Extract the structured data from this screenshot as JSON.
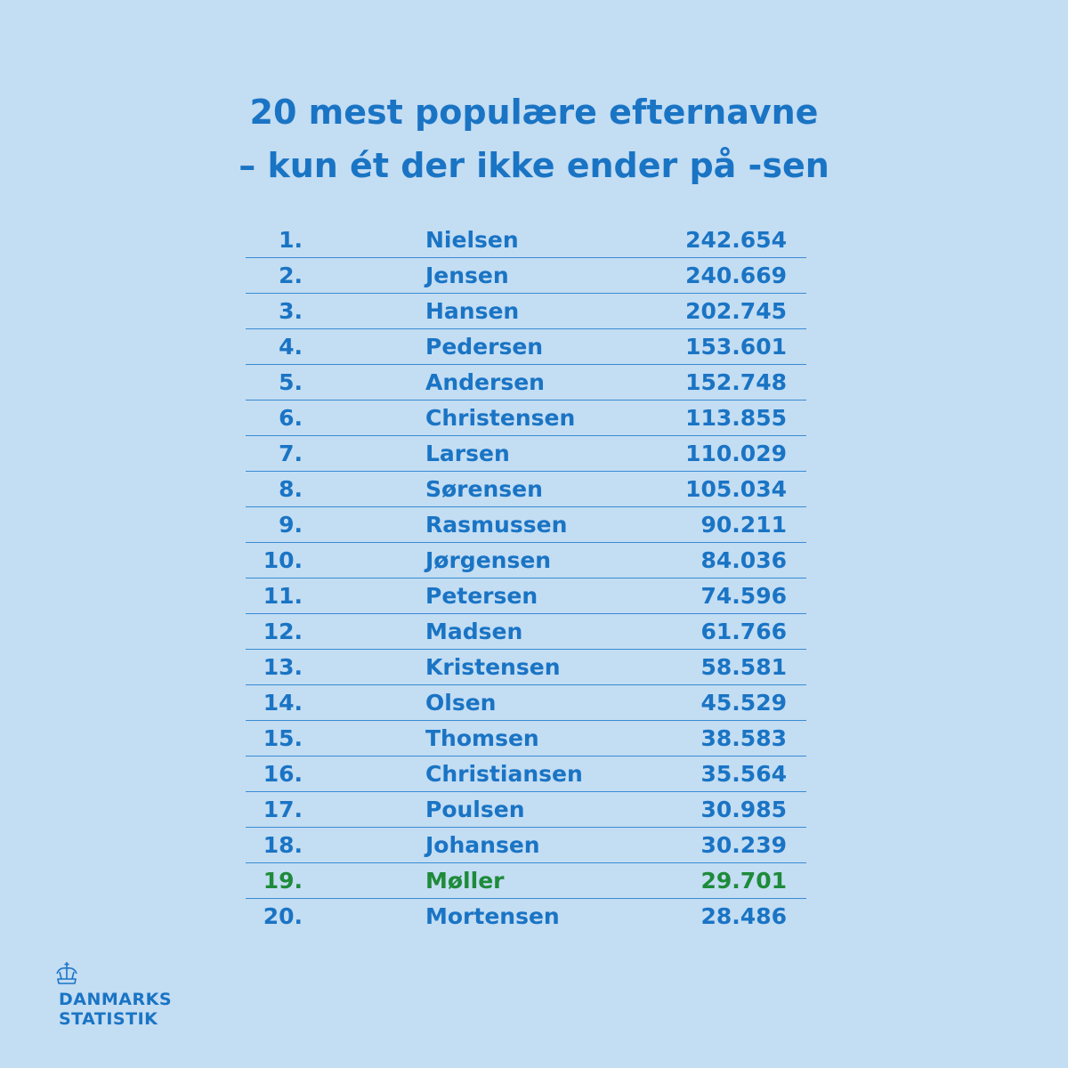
{
  "title": {
    "line1": "20 mest populære efternavne",
    "line2": "– kun ét der ikke ender på -sen"
  },
  "colors": {
    "background": "#c3ddf3",
    "text": "#1a74c4",
    "highlight": "#1e8b3a",
    "rule": "#3a8bd4"
  },
  "chart_data": {
    "type": "table",
    "title": "20 mest populære efternavne – kun ét der ikke ender på -sen",
    "highlight_rank": "19.",
    "rows": [
      {
        "rank": "1.",
        "name": "Nielsen",
        "value": "242.654"
      },
      {
        "rank": "2.",
        "name": "Jensen",
        "value": "240.669"
      },
      {
        "rank": "3.",
        "name": "Hansen",
        "value": "202.745"
      },
      {
        "rank": "4.",
        "name": "Pedersen",
        "value": "153.601"
      },
      {
        "rank": "5.",
        "name": "Andersen",
        "value": "152.748"
      },
      {
        "rank": "6.",
        "name": "Christensen",
        "value": "113.855"
      },
      {
        "rank": "7.",
        "name": "Larsen",
        "value": "110.029"
      },
      {
        "rank": "8.",
        "name": "Sørensen",
        "value": "105.034"
      },
      {
        "rank": "9.",
        "name": "Rasmussen",
        "value": "90.211"
      },
      {
        "rank": "10.",
        "name": "Jørgensen",
        "value": "84.036"
      },
      {
        "rank": "11.",
        "name": "Petersen",
        "value": "74.596"
      },
      {
        "rank": "12.",
        "name": "Madsen",
        "value": "61.766"
      },
      {
        "rank": "13.",
        "name": "Kristensen",
        "value": "58.581"
      },
      {
        "rank": "14.",
        "name": "Olsen",
        "value": "45.529"
      },
      {
        "rank": "15.",
        "name": "Thomsen",
        "value": "38.583"
      },
      {
        "rank": "16.",
        "name": "Christiansen",
        "value": "35.564"
      },
      {
        "rank": "17.",
        "name": "Poulsen",
        "value": "30.985"
      },
      {
        "rank": "18.",
        "name": "Johansen",
        "value": "30.239"
      },
      {
        "rank": "19.",
        "name": "Møller",
        "value": "29.701"
      },
      {
        "rank": "20.",
        "name": "Mortensen",
        "value": "28.486"
      }
    ]
  },
  "logo": {
    "icon": "crown-icon",
    "line1": "DANMARKS",
    "line2": "STATISTIK"
  }
}
